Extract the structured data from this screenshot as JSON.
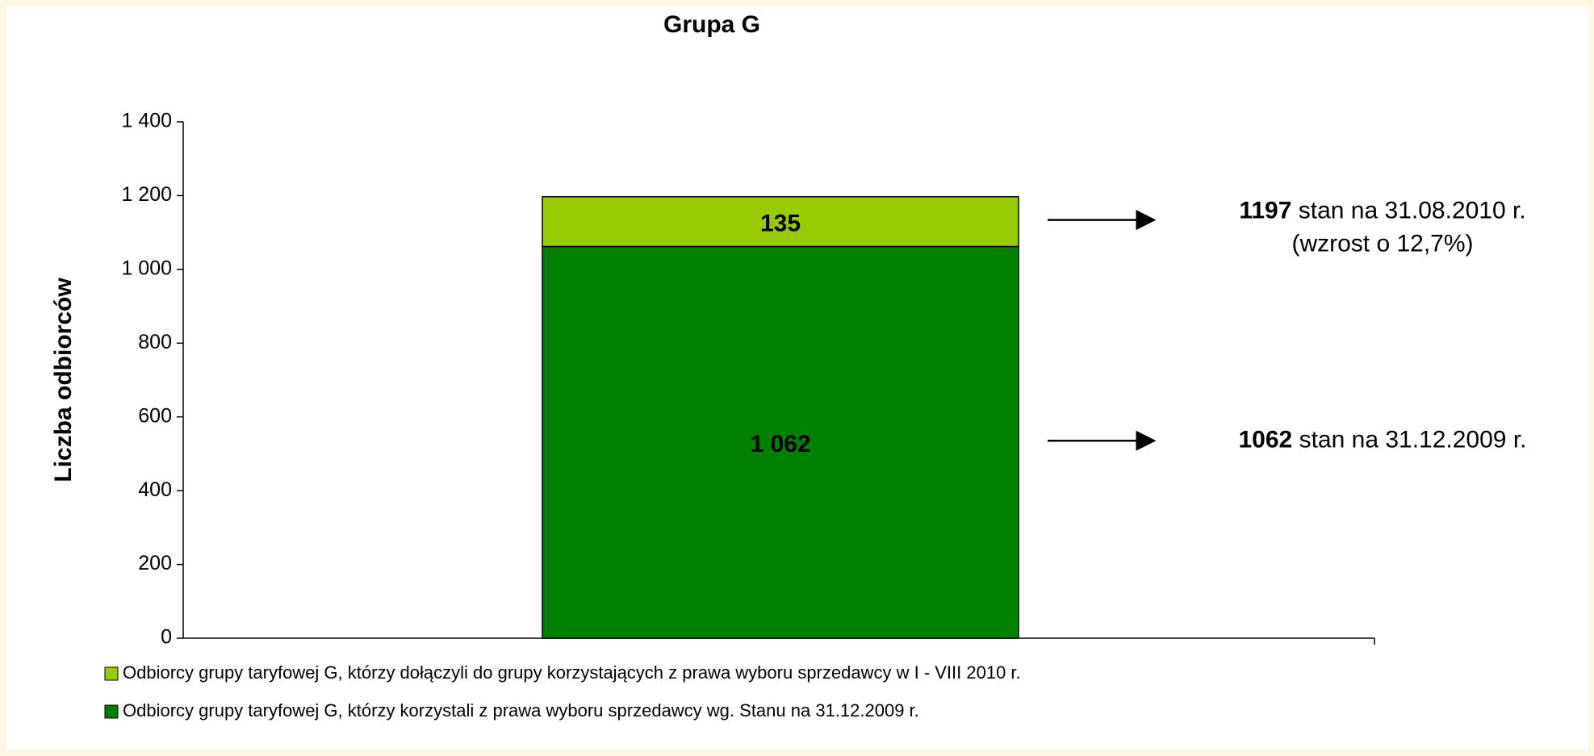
{
  "chart_data": {
    "type": "stacked_bar",
    "title": "Grupa G",
    "ylabel": "Liczba odbiorców",
    "categories": [
      null
    ],
    "series": [
      {
        "name": "Odbiorcy grupy taryfowej G, którzy korzystali z prawa wyboru sprzedawcy wg. Stanu na 31.12.2009 r.",
        "color": "#008000",
        "values": [
          1062
        ],
        "value_labels": [
          "1 062"
        ]
      },
      {
        "name": "Odbiorcy grupy taryfowej G, którzy dołączyli do grupy korzystających z prawa wyboru sprzedawcy w I - VIII 2010 r.",
        "color": "#99cc00",
        "values": [
          135
        ]
      }
    ],
    "ylim": [
      0,
      1400
    ],
    "yticks": [
      0,
      200,
      400,
      600,
      800,
      {
        "value": 1000,
        "label": "1 000"
      },
      {
        "value": 1200,
        "label": "1 200"
      },
      {
        "value": 1400,
        "label": "1 400"
      }
    ],
    "annotations": [
      {
        "value_text": "1197",
        "text": "stan na 31.08.2010 r.",
        "note": "(wzrost o 12,7%)"
      },
      {
        "value_text": "1062",
        "text": "stan na 31.12.2009 r."
      }
    ]
  }
}
